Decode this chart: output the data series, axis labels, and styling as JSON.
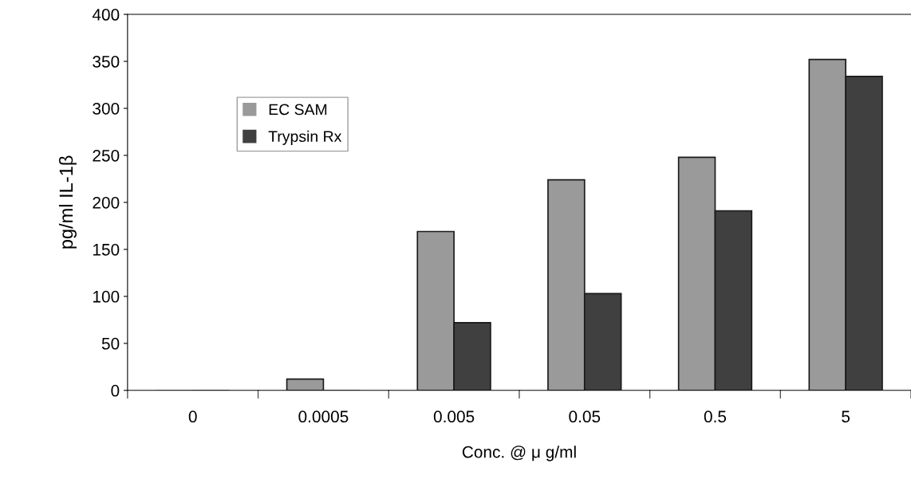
{
  "chart_data": {
    "type": "bar",
    "xlabel": "Conc. @ μ g/ml",
    "ylabel": "pg/ml IL-1β",
    "categories": [
      "0",
      "0.0005",
      "0.005",
      "0.05",
      "0.5",
      "5"
    ],
    "series": [
      {
        "name": "EC SAM",
        "color": "#9a9a9a",
        "values": [
          0,
          12,
          169,
          224,
          248,
          352
        ]
      },
      {
        "name": "Trypsin Rx",
        "color": "#404040",
        "values": [
          0,
          0,
          72,
          103,
          191,
          334
        ]
      }
    ],
    "ylim": [
      0,
      400
    ],
    "yticks": [
      0,
      50,
      100,
      150,
      200,
      250,
      300,
      350,
      400
    ],
    "grid": false,
    "legend": "top left"
  }
}
